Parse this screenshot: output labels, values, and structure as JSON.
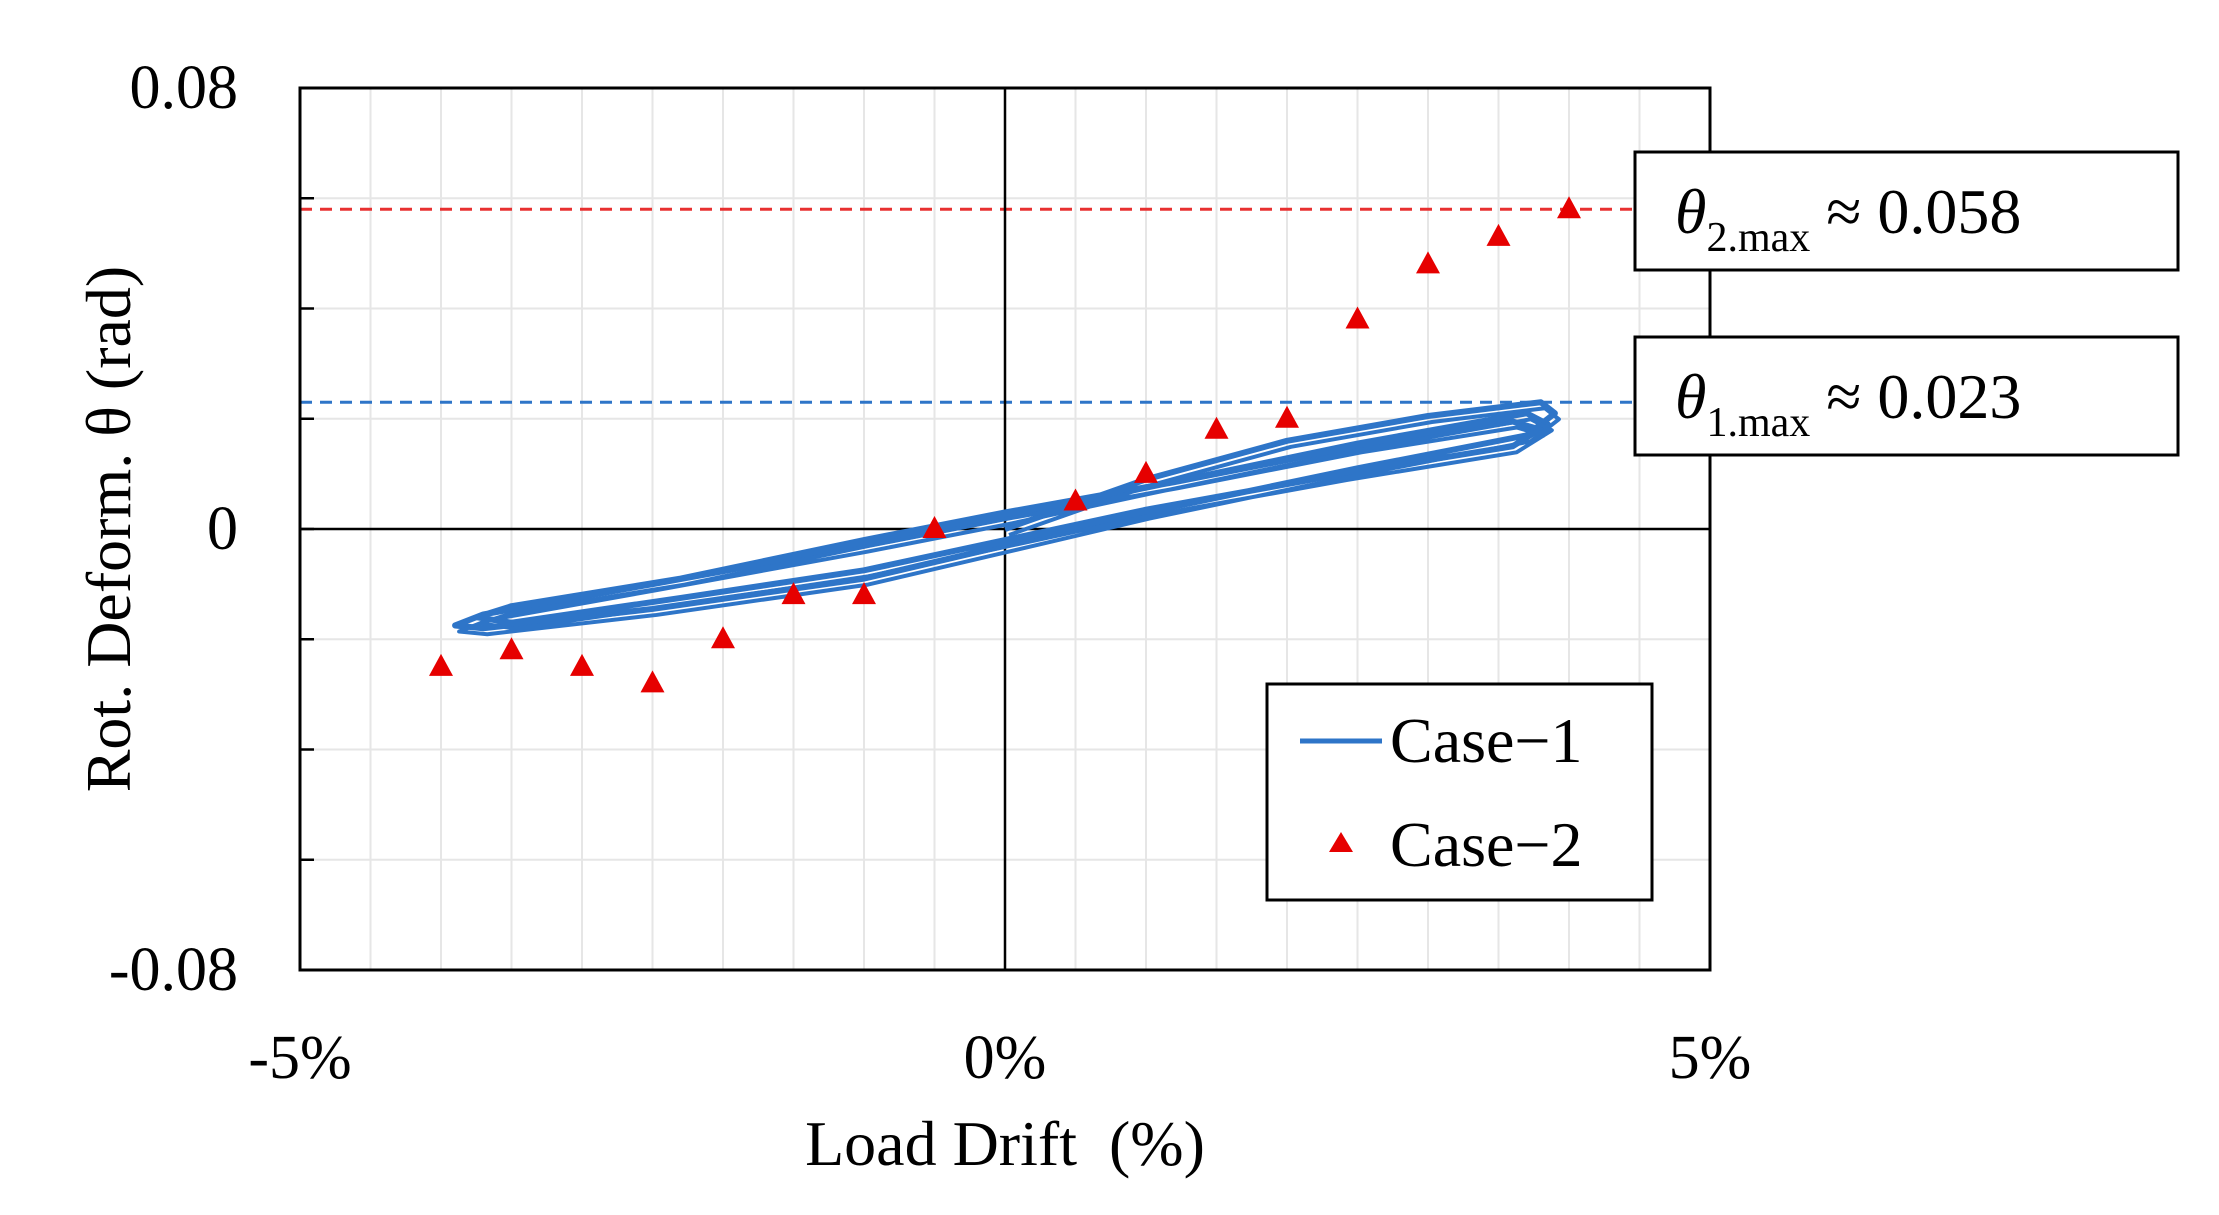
{
  "chart_data": {
    "type": "scatter",
    "xlabel": "Load Drift  (%)",
    "ylabel": "Rot. Deform. θ (rad)",
    "xlim": [
      -5,
      5
    ],
    "ylim": [
      -0.08,
      0.08
    ],
    "x_tick_labels": [
      "-5%",
      "0%",
      "5%"
    ],
    "y_tick_labels": [
      "0.08",
      "0",
      "-0.08"
    ],
    "grid": true,
    "legend_position": "bottom-right",
    "series": [
      {
        "name": "Case−1",
        "kind": "line",
        "color": "#2e75c8",
        "x": [
          0,
          1,
          2,
          3,
          3.8,
          3.9,
          3.7,
          2.5,
          1,
          0,
          -1,
          -2.5,
          -3.7,
          -3.9,
          -3.7,
          -2.5,
          -1,
          0,
          1,
          2.5,
          3.7,
          3.85,
          3.6,
          2.4,
          1,
          0,
          -1,
          -2.3,
          -3.5,
          -3.75,
          -3.5,
          -2.3,
          -1,
          0,
          1.2,
          2.5,
          3.6,
          3.8
        ],
        "y": [
          0,
          0.009,
          0.016,
          0.0205,
          0.023,
          0.021,
          0.017,
          0.011,
          0.003,
          -0.003,
          -0.009,
          -0.0145,
          -0.018,
          -0.0175,
          -0.0155,
          -0.01,
          -0.003,
          0.002,
          0.0075,
          0.0155,
          0.021,
          0.019,
          0.015,
          0.01,
          0.0035,
          -0.002,
          -0.0075,
          -0.0125,
          -0.017,
          -0.016,
          -0.014,
          -0.009,
          -0.002,
          0.003,
          0.0085,
          0.015,
          0.0195,
          0.018
        ]
      },
      {
        "name": "Case−2",
        "kind": "marker",
        "marker": "triangle",
        "color": "#e60000",
        "x": [
          -4,
          -3.5,
          -3,
          -2.5,
          -2,
          -1.5,
          -1,
          -0.5,
          0.5,
          1,
          1.5,
          2,
          2.5,
          3,
          3.5,
          4
        ],
        "y": [
          -0.025,
          -0.022,
          -0.025,
          -0.028,
          -0.02,
          -0.012,
          -0.012,
          0,
          0.005,
          0.01,
          0.018,
          0.02,
          0.038,
          0.048,
          0.053,
          0.058
        ]
      }
    ],
    "reference_lines": [
      {
        "name": "theta2-max-line",
        "y": 0.058,
        "color": "#e83030"
      },
      {
        "name": "theta1-max-line",
        "y": 0.023,
        "color": "#2e75c8"
      }
    ],
    "annotations": [
      {
        "name": "theta2-annotation",
        "symbol": "θ",
        "subscript": "2.max",
        "text": " ≈ 0.058"
      },
      {
        "name": "theta1-annotation",
        "symbol": "θ",
        "subscript": "1.max",
        "text": " ≈ 0.023"
      }
    ]
  }
}
